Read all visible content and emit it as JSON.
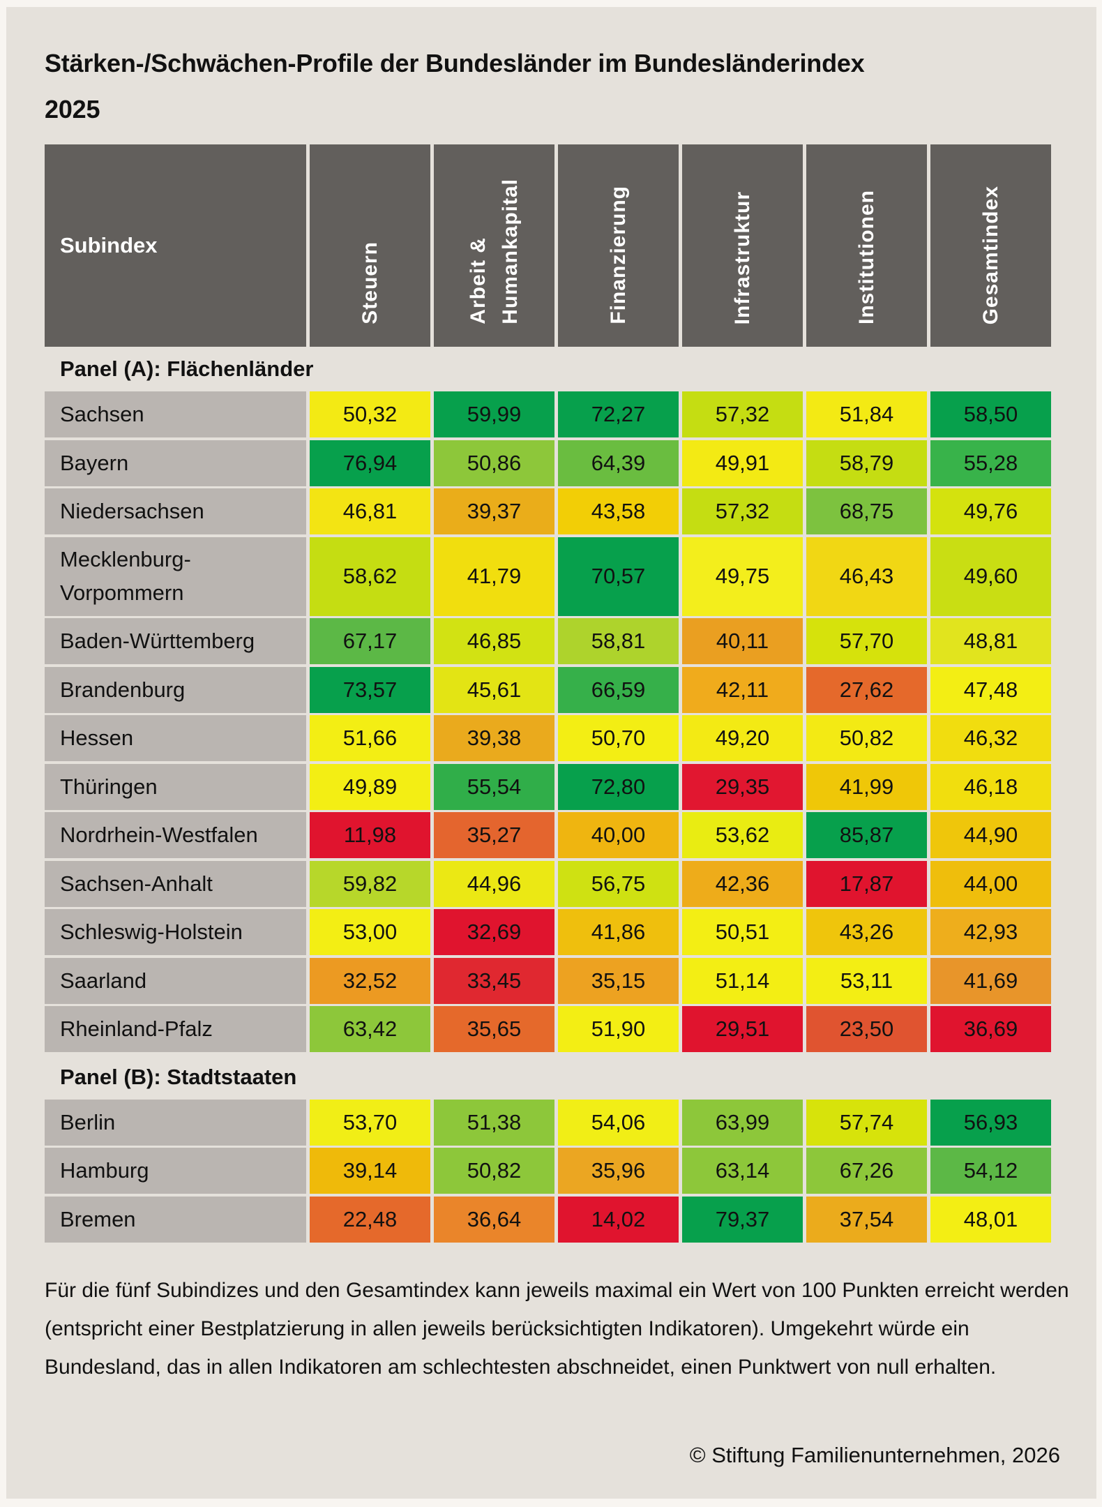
{
  "title": "Stärken-/Schwächen-Profile der Bundesländer im Bundesländerindex 2025",
  "chart_data": {
    "type": "heatmap",
    "title": "Stärken-/Schwächen-Profile der Bundesländer im Bundesländerindex 2025",
    "row_header": "Subindex",
    "columns": [
      "Steuern",
      "Arbeit &\nHumankapital",
      "Finanzierung",
      "Infrastruktur",
      "Institutionen",
      "Gesamtindex"
    ],
    "color_scale": "red (worst) → orange → yellow → green (best)",
    "panels": [
      {
        "label": "Panel (A): Flächenländer",
        "rows": [
          {
            "name": "Sachsen",
            "values": [
              "50,32",
              "59,99",
              "72,27",
              "57,32",
              "51,84",
              "58,50"
            ],
            "colors": [
              "#f3ea14",
              "#07a04c",
              "#07a04c",
              "#c5dd12",
              "#f3ea14",
              "#07a04c"
            ]
          },
          {
            "name": "Bayern",
            "values": [
              "76,94",
              "50,86",
              "64,39",
              "49,91",
              "58,79",
              "55,28"
            ],
            "colors": [
              "#07a04c",
              "#8dc73a",
              "#6abd40",
              "#f3ea14",
              "#c5dd12",
              "#38b34a"
            ]
          },
          {
            "name": "Niedersachsen",
            "values": [
              "46,81",
              "39,37",
              "43,58",
              "57,32",
              "68,75",
              "49,76"
            ],
            "colors": [
              "#f3e413",
              "#eaad1a",
              "#f2ce06",
              "#c5dd12",
              "#7dc23f",
              "#d4e20e"
            ]
          },
          {
            "name": "Mecklenburg-\nVorpommern",
            "values": [
              "58,62",
              "41,79",
              "70,57",
              "49,75",
              "46,43",
              "49,60"
            ],
            "colors": [
              "#c5dd12",
              "#f1de0e",
              "#07a04c",
              "#f3ee1c",
              "#f1d714",
              "#c9de13"
            ]
          },
          {
            "name": "Baden-Württemberg",
            "values": [
              "67,17",
              "46,85",
              "58,81",
              "40,11",
              "57,70",
              "48,81"
            ],
            "colors": [
              "#5cb846",
              "#d2e213",
              "#aed32c",
              "#ea9f21",
              "#d6e20c",
              "#e1e41e"
            ]
          },
          {
            "name": "Brandenburg",
            "values": [
              "73,57",
              "45,61",
              "66,59",
              "42,11",
              "27,62",
              "47,48"
            ],
            "colors": [
              "#07a04c",
              "#e3e414",
              "#36b04a",
              "#f0ab1c",
              "#e5692b",
              "#f3ee14"
            ]
          },
          {
            "name": "Hessen",
            "values": [
              "51,66",
              "39,38",
              "50,70",
              "49,20",
              "50,82",
              "46,32"
            ],
            "colors": [
              "#f3ee14",
              "#eaaa1d",
              "#f3ee14",
              "#f3ea14",
              "#f3ea14",
              "#f1dd0f"
            ]
          },
          {
            "name": "Thüringen",
            "values": [
              "49,89",
              "55,54",
              "72,80",
              "29,35",
              "41,99",
              "46,18"
            ],
            "colors": [
              "#f3ee14",
              "#30ae49",
              "#07a04c",
              "#e11730",
              "#efc708",
              "#f1de0e"
            ]
          },
          {
            "name": "Nordrhein-Westfalen",
            "values": [
              "11,98",
              "35,27",
              "40,00",
              "53,62",
              "85,87",
              "44,90"
            ],
            "colors": [
              "#e0142e",
              "#e4652e",
              "#efb510",
              "#e9ec12",
              "#07a04c",
              "#efc60b"
            ]
          },
          {
            "name": "Sachsen-Anhalt",
            "values": [
              "59,82",
              "44,96",
              "56,75",
              "42,36",
              "17,87",
              "44,00"
            ],
            "colors": [
              "#b7d72a",
              "#ebe814",
              "#cfe112",
              "#eeac1a",
              "#e0142e",
              "#efbe0c"
            ]
          },
          {
            "name": "Schleswig-Holstein",
            "values": [
              "53,00",
              "32,69",
              "41,86",
              "50,51",
              "43,26",
              "42,93"
            ],
            "colors": [
              "#f3ee14",
              "#e0142e",
              "#efbf0d",
              "#f3ee14",
              "#efc50c",
              "#eeae1c"
            ]
          },
          {
            "name": "Saarland",
            "values": [
              "32,52",
              "33,45",
              "35,15",
              "51,14",
              "53,11",
              "41,69"
            ],
            "colors": [
              "#ec9a22",
              "#e02830",
              "#eda221",
              "#f3ee14",
              "#f3ee14",
              "#e8952a"
            ]
          },
          {
            "name": "Rheinland-Pfalz",
            "values": [
              "63,42",
              "35,65",
              "51,90",
              "29,51",
              "23,50",
              "36,69"
            ],
            "colors": [
              "#8dc73a",
              "#e5692b",
              "#f3ee14",
              "#e0142e",
              "#e05430",
              "#e0142e"
            ]
          }
        ]
      },
      {
        "label": "Panel (B): Stadtstaaten",
        "rows": [
          {
            "name": "Berlin",
            "values": [
              "53,70",
              "51,38",
              "54,06",
              "63,99",
              "57,74",
              "56,93"
            ],
            "colors": [
              "#f1ee16",
              "#8dc73a",
              "#f1ee16",
              "#8dc73a",
              "#d7e30b",
              "#07a04c"
            ]
          },
          {
            "name": "Hamburg",
            "values": [
              "39,14",
              "50,82",
              "35,96",
              "63,14",
              "67,26",
              "54,12"
            ],
            "colors": [
              "#efba0a",
              "#8dc73a",
              "#eba622",
              "#8dc73a",
              "#8dc73a",
              "#5cb846"
            ]
          },
          {
            "name": "Bremen",
            "values": [
              "22,48",
              "36,64",
              "14,02",
              "79,37",
              "37,54",
              "48,01"
            ],
            "colors": [
              "#e5692b",
              "#ea852a",
              "#e0142e",
              "#07a04c",
              "#ebab1c",
              "#f3ee14"
            ]
          }
        ]
      }
    ],
    "max_value": 100,
    "min_value": 0
  },
  "footnote": "Für die fünf Subindizes und den Gesamtindex kann jeweils maximal ein Wert von 100 Punkten erreicht werden (entspricht einer Bestplatzierung in allen jeweils berücksichtigten Indikatoren). Umgekehrt würde ein Bundesland, das in allen Indikatoren am schlechtesten abschneidet, einen Punktwert von null erhalten.",
  "copyright": "© Stiftung Familienunternehmen, 2026",
  "colors": {
    "header_bg": "#625f5c",
    "name_cell_bg": "#bab5b1",
    "card_bg": "#e5e1db",
    "page_bg": "#f8f5f1"
  }
}
